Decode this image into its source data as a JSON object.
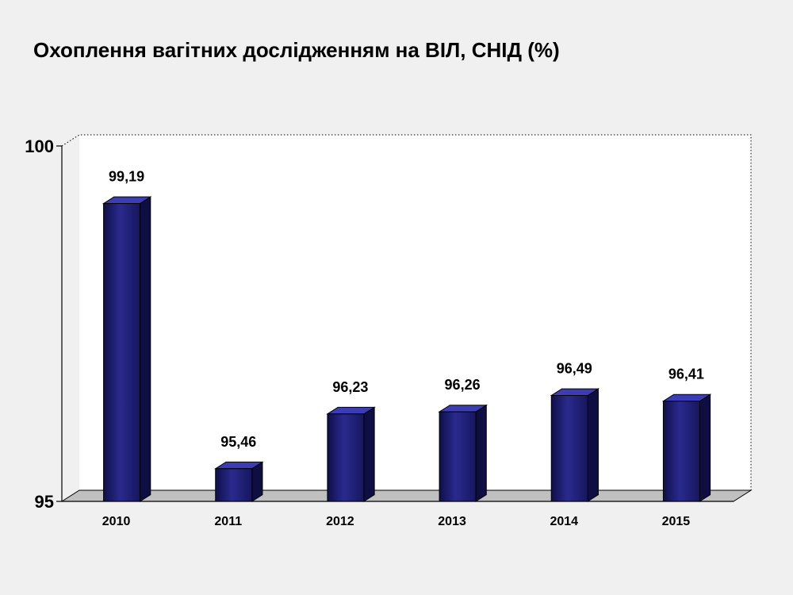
{
  "title": "Охоплення вагітних дослідженням на ВІЛ, СНІД (%)",
  "chart_data": {
    "type": "bar",
    "title": "Охоплення вагітних дослідженням на ВІЛ, СНІД (%)",
    "categories": [
      "2010",
      "2011",
      "2012",
      "2013",
      "2014",
      "2015"
    ],
    "values": [
      99.19,
      95.46,
      96.23,
      96.26,
      96.49,
      96.41
    ],
    "data_labels": [
      "99,19",
      "95,46",
      "96,23",
      "96,26",
      "96,49",
      "96,41"
    ],
    "ylim": [
      95,
      100
    ],
    "y_ticks": [
      95,
      100
    ],
    "y_tick_labels": [
      "95",
      "100"
    ],
    "xlabel": "",
    "ylabel": "",
    "three_d": true,
    "grid": false,
    "legend": "none",
    "colors": {
      "bar_front": "#1e1e78",
      "bar_top": "#3c3cb4",
      "bar_side": "#0e0e42",
      "plot_back": "#ffffff",
      "floor": "#c0c0c0"
    }
  }
}
